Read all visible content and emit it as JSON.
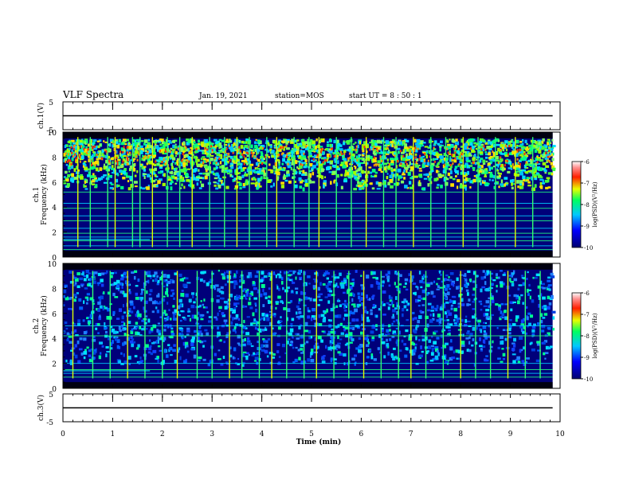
{
  "header": {
    "title": "VLF Spectra",
    "date": "Jan. 19, 2021",
    "station": "station=MOS",
    "start": "start  UT =   8 : 50 : 1"
  },
  "chart_data": [
    {
      "type": "line",
      "name": "ch1-voltage-panel",
      "ylabel": "ch.1(V)",
      "ylim": [
        -5,
        5
      ],
      "yticks": [
        "5",
        "-5"
      ],
      "xlim": [
        0,
        10
      ],
      "series": [
        {
          "x": [
            0,
            9.85
          ],
          "values": [
            0,
            0
          ]
        }
      ]
    },
    {
      "type": "heatmap",
      "name": "ch1-spectrogram",
      "ylabel": "ch.1\nFrequency (kHz)",
      "ylim": [
        0,
        10
      ],
      "yticks": [
        "0",
        "2",
        "4",
        "6",
        "8",
        "10"
      ],
      "xlim": [
        0,
        10
      ],
      "data_x_end": 9.85,
      "colorbar": {
        "label": "log(PSD)(V²/Hz)",
        "range": [
          -10,
          -6
        ],
        "ticks": [
          "-6",
          "-7",
          "-8",
          "-9",
          "-10"
        ]
      },
      "emission_band_khz": [
        5.5,
        9.5
      ],
      "tones_khz": [
        0.6,
        0.9,
        1.3,
        1.6,
        1.9,
        2.3,
        2.9,
        3.3,
        3.9,
        4.3,
        5.2
      ],
      "spike_times_min": [
        0.3,
        0.55,
        0.9,
        1.05,
        1.4,
        1.55,
        1.8,
        2.1,
        2.35,
        2.6,
        2.95,
        3.25,
        3.5,
        3.75,
        4.1,
        4.3,
        4.65,
        4.95,
        5.15,
        5.5,
        5.8,
        6.1,
        6.45,
        6.7,
        7.05,
        7.4,
        7.7,
        8.05,
        8.35,
        8.7,
        9.1,
        9.45
      ]
    },
    {
      "type": "heatmap",
      "name": "ch2-spectrogram",
      "ylabel": "ch.2\nFrequency (kHz)",
      "ylim": [
        0,
        10
      ],
      "yticks": [
        "0",
        "2",
        "4",
        "6",
        "8",
        "10"
      ],
      "xlim": [
        0,
        10
      ],
      "data_x_end": 9.85,
      "colorbar": {
        "label": "log(PSD)(V²/Hz)",
        "range": [
          -10,
          -6
        ],
        "ticks": [
          "-6",
          "-7",
          "-8",
          "-9",
          "-10"
        ]
      },
      "emission_band_khz": [
        2.0,
        9.5
      ],
      "tones_khz": [
        0.9,
        1.2,
        1.5,
        2.0,
        4.2,
        5.0
      ],
      "spike_times_min": [
        0.2,
        0.6,
        0.95,
        1.3,
        1.65,
        2.0,
        2.3,
        2.7,
        3.0,
        3.35,
        3.6,
        3.95,
        4.2,
        4.5,
        4.85,
        5.1,
        5.45,
        5.75,
        6.05,
        6.4,
        6.75,
        7.0,
        7.3,
        7.65,
        8.0,
        8.3,
        8.6,
        8.95,
        9.3,
        9.6
      ]
    },
    {
      "type": "line",
      "name": "ch3-voltage-panel",
      "ylabel": "ch.3(V)",
      "ylim": [
        -5,
        5
      ],
      "yticks": [
        "5",
        "-5"
      ],
      "xlim": [
        0,
        10
      ],
      "xticks": [
        "0",
        "1",
        "2",
        "3",
        "4",
        "5",
        "6",
        "7",
        "8",
        "9",
        "10"
      ],
      "xlabel": "Time  (min)",
      "series": [
        {
          "x": [
            0,
            9.85
          ],
          "values": [
            0,
            0
          ]
        }
      ]
    }
  ]
}
